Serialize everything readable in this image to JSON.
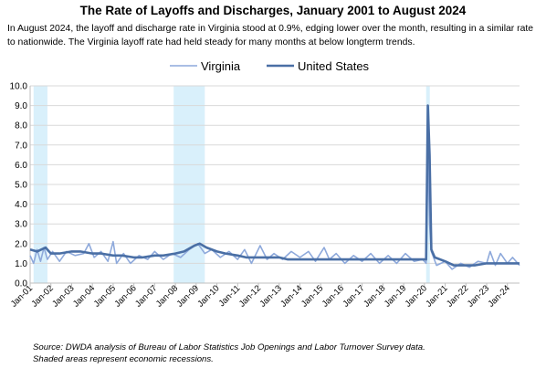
{
  "title": "The Rate of Layoffs and Discharges, January 2001 to August 2024",
  "subtitle": "In August 2024, the layoff and discharge rate in Virginia stood at 0.9%, edging lower over the month, resulting in a similar rate to nationwide. The Virginia layoff rate had held steady for many months at below longterm trends.",
  "source_line1": "Source: DWDA analysis of Bureau of Labor Statistics Job Openings and Labor Turnover Survey data.",
  "source_line2": "Shaded areas represent economic recessions.",
  "chart_data": {
    "type": "line",
    "x_start": "2001-01",
    "x_end": "2024-08",
    "ylim": [
      0,
      10
    ],
    "yticks": [
      "0.0",
      "1.0",
      "2.0",
      "3.0",
      "4.0",
      "5.0",
      "6.0",
      "7.0",
      "8.0",
      "9.0",
      "10.0"
    ],
    "xtick_labels": [
      "Jan-01",
      "Jan-02",
      "Jan-03",
      "Jan-04",
      "Jan-05",
      "Jan-06",
      "Jan-07",
      "Jan-08",
      "Jan-09",
      "Jan-10",
      "Jan-11",
      "Jan-12",
      "Jan-13",
      "Jan-14",
      "Jan-15",
      "Jan-16",
      "Jan-17",
      "Jan-18",
      "Jan-19",
      "Jan-20",
      "Jan-21",
      "Jan-22",
      "Jan-23",
      "Jan-24"
    ],
    "recessions": [
      [
        "2001-03",
        "2001-11"
      ],
      [
        "2007-12",
        "2009-06"
      ],
      [
        "2020-02",
        "2020-04"
      ]
    ],
    "legend_position": "top",
    "grid": true,
    "series": [
      {
        "name": "Virginia",
        "color": "#8ea9db",
        "points": [
          [
            "2001-01",
            1.4
          ],
          [
            "2001-03",
            1.0
          ],
          [
            "2001-05",
            1.7
          ],
          [
            "2001-07",
            1.1
          ],
          [
            "2001-09",
            1.8
          ],
          [
            "2001-11",
            1.2
          ],
          [
            "2002-02",
            1.6
          ],
          [
            "2002-06",
            1.1
          ],
          [
            "2002-10",
            1.6
          ],
          [
            "2003-03",
            1.4
          ],
          [
            "2003-08",
            1.5
          ],
          [
            "2003-11",
            2.0
          ],
          [
            "2004-02",
            1.3
          ],
          [
            "2004-06",
            1.6
          ],
          [
            "2004-10",
            1.1
          ],
          [
            "2005-01",
            2.1
          ],
          [
            "2005-03",
            1.0
          ],
          [
            "2005-07",
            1.5
          ],
          [
            "2005-11",
            1.0
          ],
          [
            "2006-04",
            1.4
          ],
          [
            "2006-09",
            1.2
          ],
          [
            "2007-01",
            1.6
          ],
          [
            "2007-06",
            1.2
          ],
          [
            "2007-11",
            1.5
          ],
          [
            "2008-04",
            1.3
          ],
          [
            "2008-09",
            1.7
          ],
          [
            "2009-02",
            2.0
          ],
          [
            "2009-06",
            1.5
          ],
          [
            "2009-10",
            1.7
          ],
          [
            "2010-03",
            1.3
          ],
          [
            "2010-08",
            1.6
          ],
          [
            "2011-01",
            1.2
          ],
          [
            "2011-05",
            1.7
          ],
          [
            "2011-09",
            1.0
          ],
          [
            "2012-02",
            1.9
          ],
          [
            "2012-06",
            1.2
          ],
          [
            "2012-10",
            1.5
          ],
          [
            "2013-03",
            1.2
          ],
          [
            "2013-08",
            1.6
          ],
          [
            "2014-01",
            1.3
          ],
          [
            "2014-06",
            1.6
          ],
          [
            "2014-10",
            1.1
          ],
          [
            "2015-03",
            1.8
          ],
          [
            "2015-06",
            1.2
          ],
          [
            "2015-10",
            1.5
          ],
          [
            "2016-03",
            1.0
          ],
          [
            "2016-08",
            1.4
          ],
          [
            "2017-01",
            1.1
          ],
          [
            "2017-06",
            1.5
          ],
          [
            "2017-11",
            1.0
          ],
          [
            "2018-04",
            1.4
          ],
          [
            "2018-09",
            1.0
          ],
          [
            "2019-02",
            1.5
          ],
          [
            "2019-07",
            1.1
          ],
          [
            "2019-12",
            1.2
          ],
          [
            "2020-02",
            1.0
          ],
          [
            "2020-03",
            6.5
          ],
          [
            "2020-04",
            3.0
          ],
          [
            "2020-05",
            1.6
          ],
          [
            "2020-08",
            0.9
          ],
          [
            "2021-01",
            1.1
          ],
          [
            "2021-05",
            0.7
          ],
          [
            "2021-10",
            1.0
          ],
          [
            "2022-03",
            0.8
          ],
          [
            "2022-08",
            1.1
          ],
          [
            "2023-01",
            1.0
          ],
          [
            "2023-03",
            1.6
          ],
          [
            "2023-06",
            0.9
          ],
          [
            "2023-09",
            1.5
          ],
          [
            "2024-01",
            1.0
          ],
          [
            "2024-04",
            1.3
          ],
          [
            "2024-08",
            0.9
          ]
        ]
      },
      {
        "name": "United States",
        "color": "#4a6fa5",
        "points": [
          [
            "2001-01",
            1.7
          ],
          [
            "2001-05",
            1.6
          ],
          [
            "2001-10",
            1.8
          ],
          [
            "2002-01",
            1.5
          ],
          [
            "2002-06",
            1.5
          ],
          [
            "2003-01",
            1.6
          ],
          [
            "2003-06",
            1.6
          ],
          [
            "2004-01",
            1.5
          ],
          [
            "2004-06",
            1.5
          ],
          [
            "2005-01",
            1.4
          ],
          [
            "2005-06",
            1.4
          ],
          [
            "2006-01",
            1.3
          ],
          [
            "2006-06",
            1.3
          ],
          [
            "2007-01",
            1.4
          ],
          [
            "2007-06",
            1.4
          ],
          [
            "2008-01",
            1.5
          ],
          [
            "2008-06",
            1.6
          ],
          [
            "2008-12",
            1.9
          ],
          [
            "2009-03",
            2.0
          ],
          [
            "2009-07",
            1.8
          ],
          [
            "2010-01",
            1.6
          ],
          [
            "2010-06",
            1.5
          ],
          [
            "2011-01",
            1.4
          ],
          [
            "2011-06",
            1.3
          ],
          [
            "2012-01",
            1.3
          ],
          [
            "2012-06",
            1.3
          ],
          [
            "2013-01",
            1.3
          ],
          [
            "2013-06",
            1.2
          ],
          [
            "2014-01",
            1.2
          ],
          [
            "2014-06",
            1.2
          ],
          [
            "2015-01",
            1.2
          ],
          [
            "2015-06",
            1.2
          ],
          [
            "2016-01",
            1.2
          ],
          [
            "2016-06",
            1.2
          ],
          [
            "2017-01",
            1.2
          ],
          [
            "2017-06",
            1.2
          ],
          [
            "2018-01",
            1.2
          ],
          [
            "2018-06",
            1.2
          ],
          [
            "2019-01",
            1.2
          ],
          [
            "2019-06",
            1.2
          ],
          [
            "2020-01",
            1.2
          ],
          [
            "2020-02",
            1.2
          ],
          [
            "2020-03",
            9.0
          ],
          [
            "2020-04",
            6.5
          ],
          [
            "2020-05",
            1.7
          ],
          [
            "2020-07",
            1.3
          ],
          [
            "2021-01",
            1.1
          ],
          [
            "2021-06",
            0.9
          ],
          [
            "2022-01",
            0.9
          ],
          [
            "2022-06",
            0.9
          ],
          [
            "2023-01",
            1.0
          ],
          [
            "2023-06",
            1.0
          ],
          [
            "2024-01",
            1.0
          ],
          [
            "2024-08",
            1.0
          ]
        ]
      }
    ]
  }
}
